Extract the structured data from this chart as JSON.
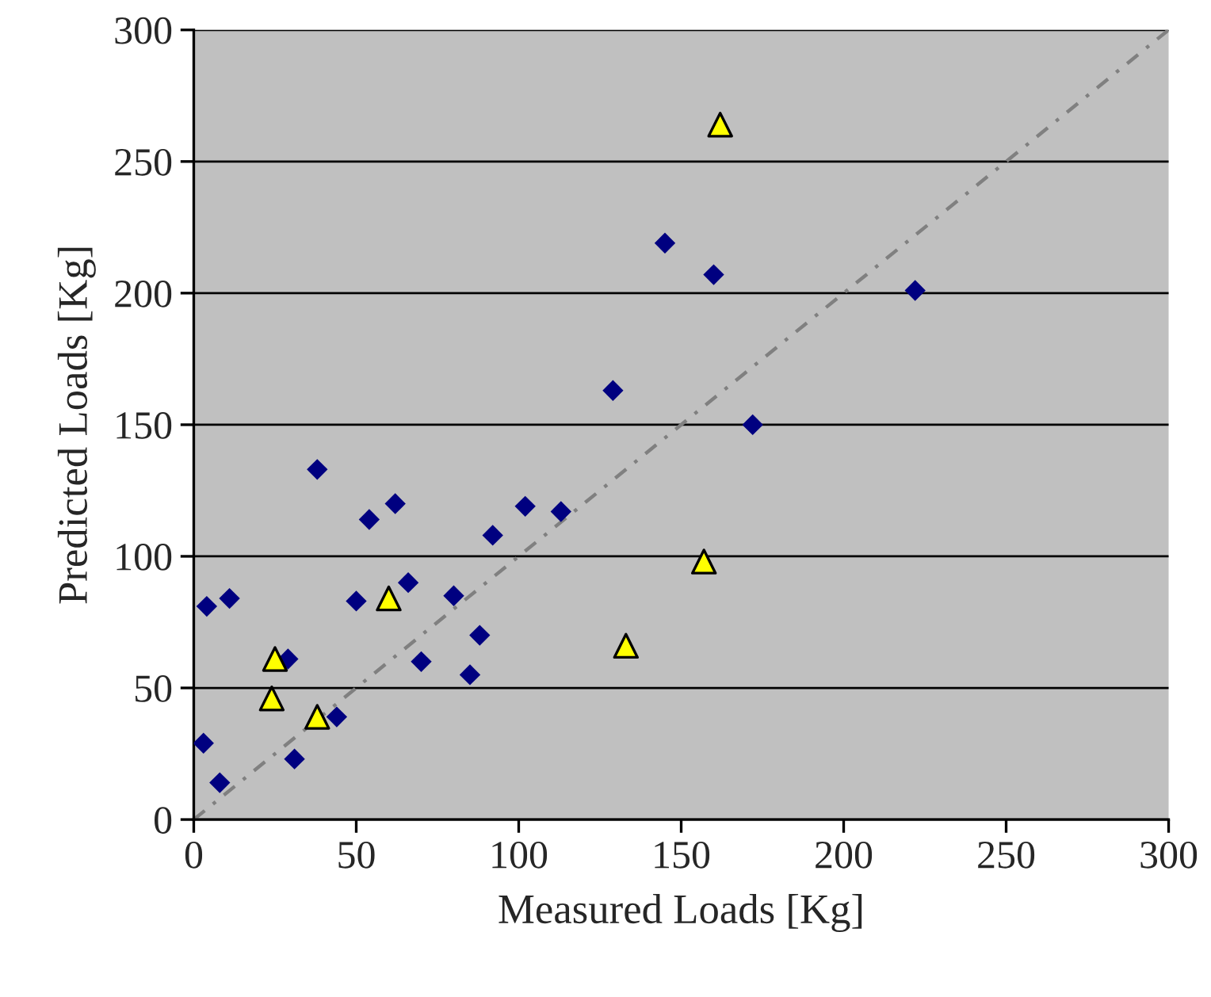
{
  "chart_data": {
    "type": "scatter",
    "xlabel": "Measured Loads [Kg]",
    "ylabel": "Predicted Loads [Kg]",
    "xlim": [
      0,
      300
    ],
    "ylim": [
      0,
      300
    ],
    "xticks": [
      0,
      50,
      100,
      150,
      200,
      250,
      300
    ],
    "yticks": [
      0,
      50,
      100,
      150,
      200,
      250,
      300
    ],
    "grid": "y",
    "series": [
      {
        "marker": "diamond",
        "color": "#000080",
        "x": [
          3,
          8,
          4,
          11,
          29,
          31,
          44,
          38,
          54,
          62,
          50,
          66,
          70,
          80,
          88,
          85,
          92,
          102,
          113,
          129,
          145,
          160,
          172,
          222
        ],
        "values": [
          29,
          14,
          81,
          84,
          61,
          23,
          39,
          133,
          114,
          120,
          83,
          90,
          60,
          85,
          70,
          55,
          108,
          119,
          117,
          163,
          219,
          207,
          150,
          201
        ]
      },
      {
        "marker": "triangle",
        "color": "#ffff00",
        "x": [
          25,
          24,
          38,
          60,
          133,
          157,
          162
        ],
        "values": [
          61,
          46,
          39,
          84,
          66,
          98,
          264
        ]
      },
      {
        "type": "line",
        "marker": "none",
        "line_style": "dotted",
        "color": "#808080",
        "x": [
          0,
          300
        ],
        "values": [
          0,
          300
        ]
      }
    ]
  }
}
